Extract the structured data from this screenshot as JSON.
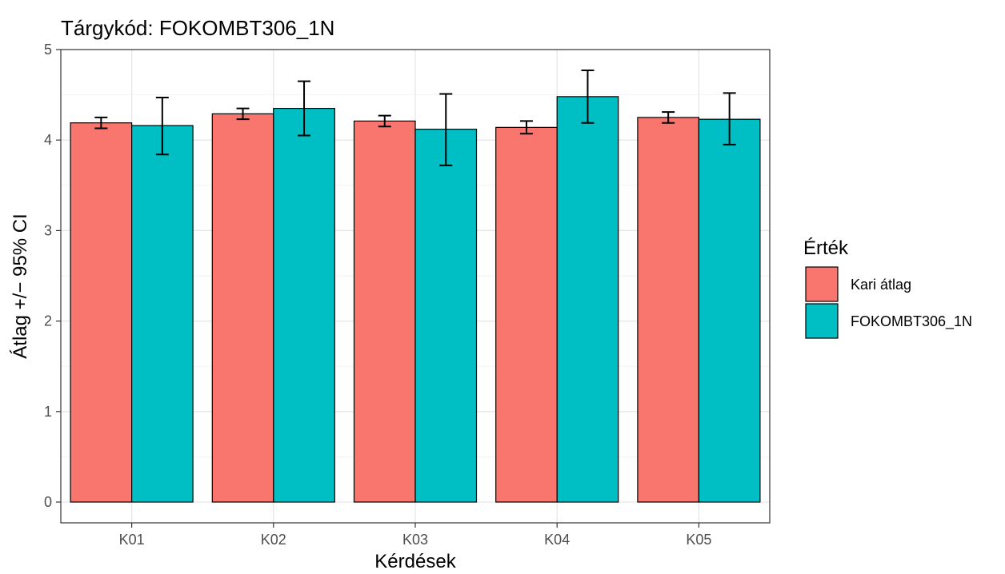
{
  "chart_data": {
    "type": "bar",
    "title": "Tárgykód:  FOKOMBT306_1N",
    "xlabel": "Kérdések",
    "ylabel": "Átlag +/− 95% CI",
    "ylim": [
      0,
      5
    ],
    "yticks": [
      "0",
      "1",
      "2",
      "3",
      "4",
      "5"
    ],
    "grid": true,
    "legend_position": "right",
    "legend_title": "Érték",
    "categories": [
      "K01",
      "K02",
      "K03",
      "K04",
      "K05"
    ],
    "series": [
      {
        "name": "Kari átlag",
        "color": "#F8766D",
        "values": [
          4.19,
          4.29,
          4.21,
          4.14,
          4.25
        ],
        "ci_low": [
          4.13,
          4.23,
          4.15,
          4.07,
          4.19
        ],
        "ci_high": [
          4.25,
          4.35,
          4.27,
          4.21,
          4.31
        ]
      },
      {
        "name": "FOKOMBT306_1N",
        "color": "#00BFC4",
        "values": [
          4.16,
          4.35,
          4.12,
          4.48,
          4.23
        ],
        "ci_low": [
          3.84,
          4.05,
          3.72,
          4.19,
          3.95
        ],
        "ci_high": [
          4.47,
          4.65,
          4.51,
          4.77,
          4.52
        ]
      }
    ]
  }
}
